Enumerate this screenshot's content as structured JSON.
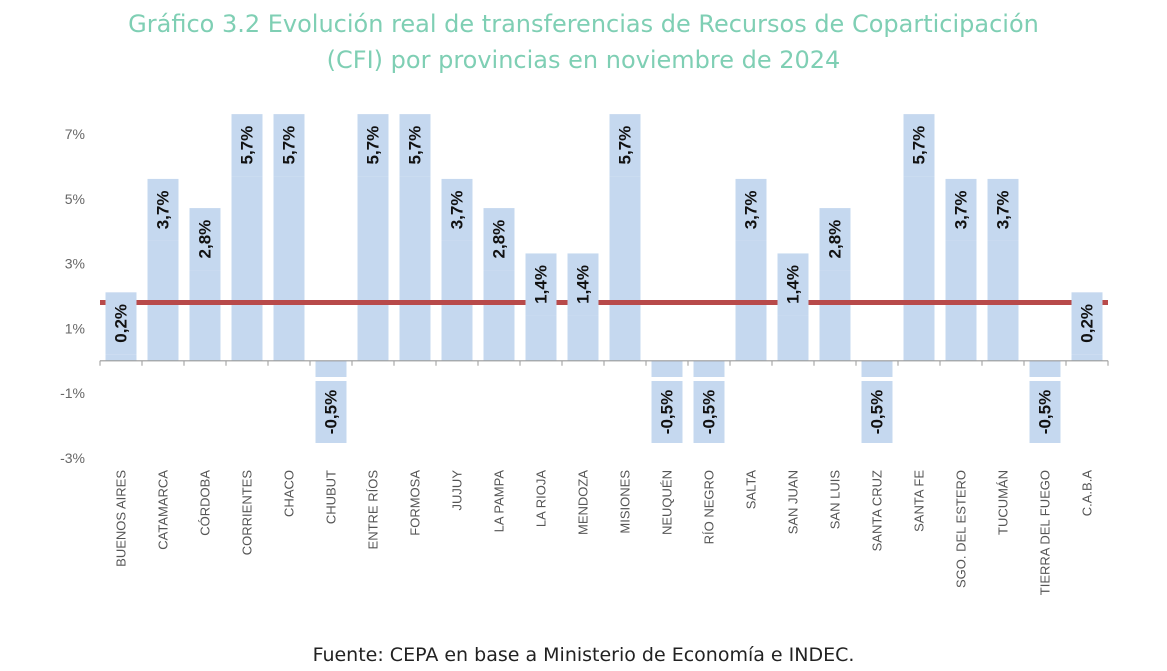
{
  "title": {
    "line1": "Gráfico 3.2 Evolución real de transferencias de Recursos de Coparticipación",
    "line2": "(CFI) por provincias en noviembre de 2024"
  },
  "source": "Fuente: CEPA en base a Ministerio de Economía e INDEC.",
  "colors": {
    "bar": "#c5d8ef",
    "label_bg": "#c5d8ef",
    "reference_line": "#b84a4a",
    "title": "#7fcfb4",
    "axis_text": "#666666"
  },
  "chart_data": {
    "type": "bar",
    "title": "Gráfico 3.2 Evolución real de transferencias de Recursos de Coparticipación (CFI) por provincias en noviembre de 2024",
    "xlabel": "",
    "ylabel": "",
    "ylim": [
      -3,
      7
    ],
    "yticks": [
      -3,
      -1,
      1,
      3,
      5,
      7
    ],
    "ytick_labels": [
      "-3%",
      "-1%",
      "1%",
      "3%",
      "5%",
      "7%"
    ],
    "grid": false,
    "legend": "none",
    "reference_line": 1.8,
    "categories": [
      "BUENOS AIRES",
      "CATAMARCA",
      "CÓRDOBA",
      "CORRIENTES",
      "CHACO",
      "CHUBUT",
      "ENTRE RÍOS",
      "FORMOSA",
      "JUJUY",
      "LA PAMPA",
      "LA RIOJA",
      "MENDOZA",
      "MISIONES",
      "NEUQUÉN",
      "RÍO NEGRO",
      "SALTA",
      "SAN JUAN",
      "SAN LUIS",
      "SANTA CRUZ",
      "SANTA FE",
      "SGO. DEL ESTERO",
      "TUCUMÁN",
      "TIERRA DEL FUEGO",
      "C.A.B.A"
    ],
    "values": [
      0.2,
      3.7,
      2.8,
      5.7,
      5.7,
      -0.5,
      5.7,
      5.7,
      3.7,
      2.8,
      1.4,
      1.4,
      5.7,
      -0.5,
      -0.5,
      3.7,
      1.4,
      2.8,
      -0.5,
      5.7,
      3.7,
      3.7,
      -0.5,
      0.2
    ],
    "data_labels": [
      "0,2%",
      "3,7%",
      "2,8%",
      "5,7%",
      "5,7%",
      "-0,5%",
      "5,7%",
      "5,7%",
      "3,7%",
      "2,8%",
      "1,4%",
      "1,4%",
      "5,7%",
      "-0,5%",
      "-0,5%",
      "3,7%",
      "1,4%",
      "2,8%",
      "-0,5%",
      "5,7%",
      "3,7%",
      "3,7%",
      "-0,5%",
      "0,2%"
    ]
  }
}
